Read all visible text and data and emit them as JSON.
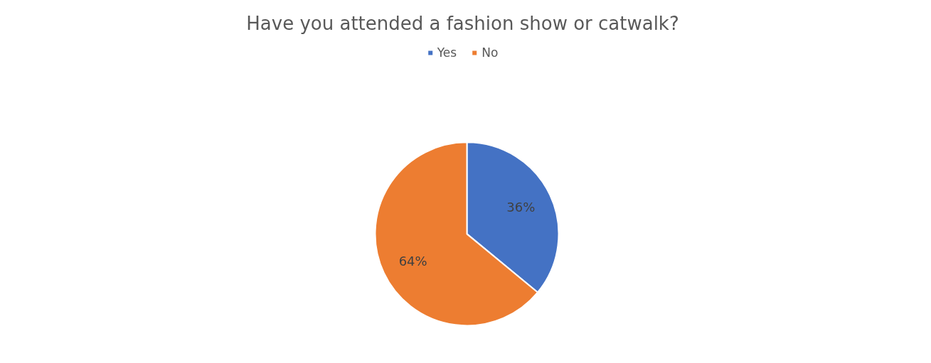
{
  "chart_data": {
    "type": "pie",
    "title": "Have you attended a fashion show or catwalk?",
    "categories": [
      "Yes",
      "No"
    ],
    "values": [
      36,
      64
    ],
    "colors": [
      "#4472c4",
      "#ed7d31"
    ],
    "value_labels": [
      "36%",
      "64%"
    ],
    "legend": "top"
  }
}
